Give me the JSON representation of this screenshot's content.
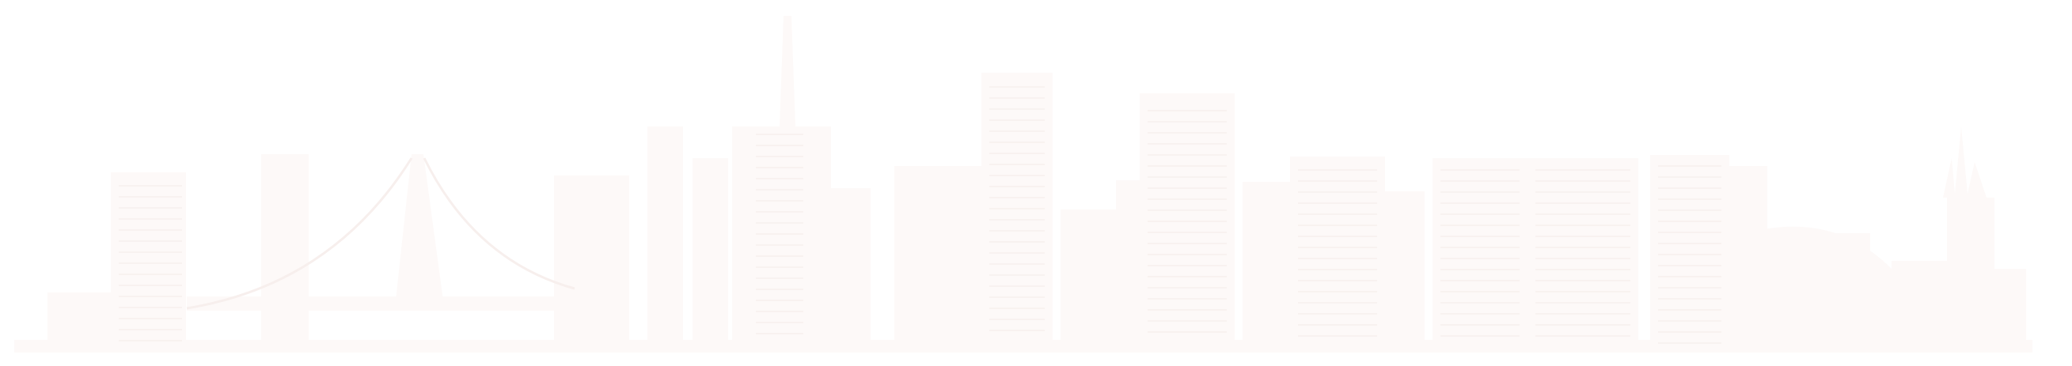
{
  "image": {
    "subject": "",
    "colors": {
      "background": "#ffffff",
      "silhouette": "#fdf9f8",
      "detail": "#f7efed"
    }
  }
}
